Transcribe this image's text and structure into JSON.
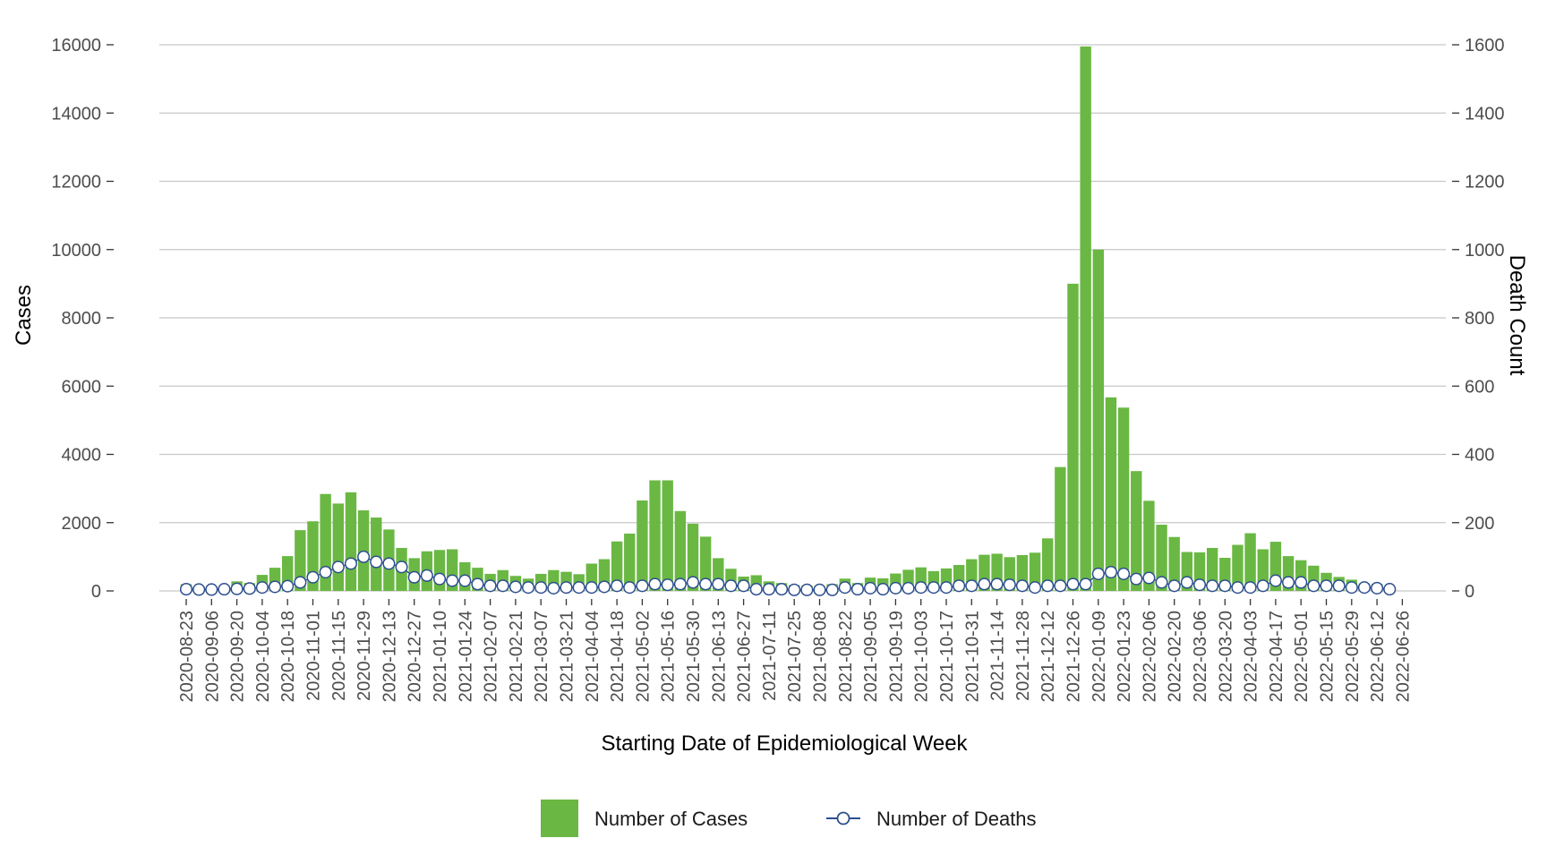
{
  "chart_data": {
    "type": "bar",
    "xlabel": "Starting Date of Epidemiological Week",
    "ylabel": "Cases",
    "ylabel_right": "Death Count",
    "ylim": [
      0,
      16000
    ],
    "ylim_right": [
      0,
      1600
    ],
    "yticks": [
      0,
      2000,
      4000,
      6000,
      8000,
      10000,
      12000,
      14000,
      16000
    ],
    "yticks_right": [
      0,
      200,
      400,
      600,
      800,
      1000,
      1200,
      1400,
      1600
    ],
    "grid": true,
    "legend_position": "bottom",
    "colors": {
      "cases": "#6ab843",
      "deaths_line": "#2c4e8e",
      "deaths_marker_fill": "#ffffff"
    },
    "x_tick_labels": [
      "2020-08-23",
      "2020-09-06",
      "2020-09-20",
      "2020-10-04",
      "2020-10-18",
      "2020-11-01",
      "2020-11-15",
      "2020-11-29",
      "2020-12-13",
      "2020-12-27",
      "2021-01-10",
      "2021-01-24",
      "2021-02-07",
      "2021-02-21",
      "2021-03-07",
      "2021-03-21",
      "2021-04-04",
      "2021-04-18",
      "2021-05-02",
      "2021-05-16",
      "2021-05-30",
      "2021-06-13",
      "2021-06-27",
      "2021-07-11",
      "2021-07-25",
      "2021-08-08",
      "2021-08-22",
      "2021-09-05",
      "2021-09-19",
      "2021-10-03",
      "2021-10-17",
      "2021-10-31",
      "2021-11-14",
      "2021-11-28",
      "2021-12-12",
      "2021-12-26",
      "2022-01-09",
      "2022-01-23",
      "2022-02-06",
      "2022-02-20",
      "2022-03-06",
      "2022-03-20",
      "2022-04-03",
      "2022-04-17",
      "2022-05-01",
      "2022-05-15",
      "2022-05-29",
      "2022-06-12",
      "2022-06-26"
    ],
    "series": [
      {
        "name": "Number of Cases",
        "type": "bar",
        "axis": "left",
        "values": [
          200,
          50,
          30,
          60,
          280,
          230,
          470,
          680,
          1020,
          1780,
          2040,
          2840,
          2560,
          2890,
          2360,
          2150,
          1800,
          1260,
          960,
          1160,
          1200,
          1220,
          840,
          680,
          500,
          610,
          440,
          360,
          500,
          610,
          560,
          490,
          800,
          930,
          1450,
          1680,
          2650,
          3240,
          3240,
          2340,
          1970,
          1590,
          960,
          650,
          420,
          460,
          280,
          230,
          170,
          160,
          140,
          200,
          360,
          230,
          390,
          370,
          510,
          620,
          690,
          580,
          660,
          760,
          930,
          1060,
          1090,
          990,
          1050,
          1120,
          1540,
          3630,
          9000,
          15950,
          10000,
          5670,
          5370,
          3510,
          2640,
          1940,
          1580,
          1140,
          1130,
          1260,
          970,
          1350,
          1690,
          1220,
          1440,
          1020,
          900,
          740,
          530,
          410,
          330,
          220,
          210,
          120
        ]
      },
      {
        "name": "Number of Deaths",
        "type": "line",
        "axis": "right",
        "values": [
          5,
          4,
          4,
          5,
          6,
          7,
          10,
          12,
          14,
          25,
          40,
          55,
          70,
          80,
          100,
          85,
          80,
          70,
          40,
          45,
          35,
          30,
          30,
          20,
          15,
          15,
          12,
          10,
          10,
          8,
          10,
          10,
          10,
          12,
          15,
          10,
          15,
          20,
          18,
          20,
          25,
          20,
          20,
          15,
          15,
          5,
          5,
          5,
          3,
          3,
          3,
          3,
          10,
          5,
          8,
          5,
          8,
          8,
          10,
          10,
          10,
          15,
          15,
          20,
          20,
          18,
          15,
          10,
          15,
          15,
          20,
          20,
          50,
          55,
          50,
          35,
          38,
          25,
          15,
          25,
          18,
          15,
          15,
          10,
          10,
          15,
          30,
          25,
          25,
          15,
          15,
          15,
          10,
          10,
          8,
          5
        ]
      }
    ]
  }
}
